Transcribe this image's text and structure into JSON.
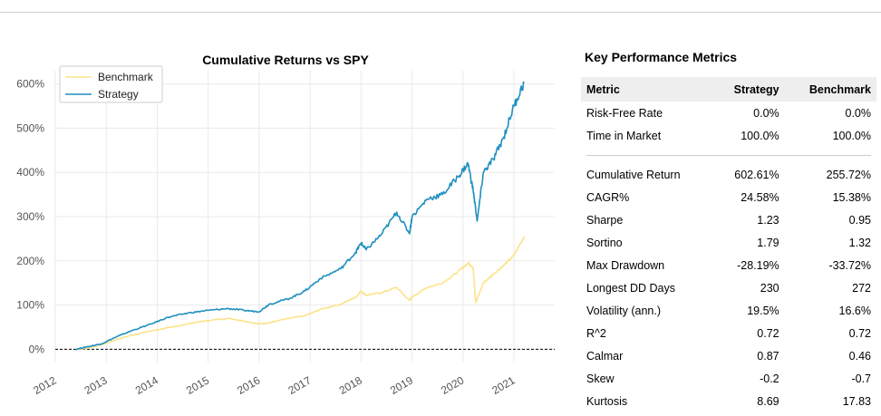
{
  "chart_data": {
    "type": "line",
    "title": "Cumulative Returns vs SPY",
    "xlabel": "",
    "ylabel": "",
    "x_ticks": [
      "2012",
      "2013",
      "2014",
      "2015",
      "2016",
      "2017",
      "2018",
      "2019",
      "2020",
      "2021"
    ],
    "y_ticks": [
      "0%",
      "100%",
      "200%",
      "300%",
      "400%",
      "500%",
      "600%"
    ],
    "xlim": [
      2012.0,
      2021.8
    ],
    "ylim": [
      -30,
      630
    ],
    "grid": true,
    "legend_position": "top-left",
    "series": [
      {
        "name": "Benchmark",
        "color": "#fce38a",
        "x": [
          2012.4,
          2012.6,
          2012.9,
          2013.2,
          2013.5,
          2013.9,
          2014.3,
          2014.7,
          2015.0,
          2015.4,
          2015.7,
          2016.0,
          2016.2,
          2016.5,
          2016.9,
          2017.2,
          2017.6,
          2017.9,
          2018.0,
          2018.1,
          2018.4,
          2018.7,
          2018.95,
          2019.0,
          2019.3,
          2019.6,
          2019.9,
          2020.1,
          2020.2,
          2020.25,
          2020.4,
          2020.6,
          2020.8,
          2021.0,
          2021.2
        ],
        "values": [
          0,
          2,
          10,
          22,
          32,
          42,
          50,
          60,
          65,
          70,
          64,
          57,
          60,
          68,
          76,
          90,
          102,
          118,
          132,
          122,
          128,
          140,
          110,
          118,
          140,
          150,
          175,
          195,
          185,
          105,
          150,
          170,
          190,
          212,
          255
        ]
      },
      {
        "name": "Strategy",
        "color": "#1f8fbf",
        "x": [
          2012.4,
          2012.6,
          2012.9,
          2013.2,
          2013.5,
          2013.9,
          2014.2,
          2014.6,
          2015.0,
          2015.4,
          2015.7,
          2016.0,
          2016.2,
          2016.6,
          2016.9,
          2017.2,
          2017.6,
          2017.9,
          2018.0,
          2018.1,
          2018.4,
          2018.7,
          2018.95,
          2019.0,
          2019.3,
          2019.6,
          2019.9,
          2020.1,
          2020.2,
          2020.28,
          2020.4,
          2020.6,
          2020.8,
          2021.0,
          2021.2
        ],
        "values": [
          0,
          5,
          12,
          28,
          42,
          58,
          72,
          82,
          88,
          92,
          88,
          85,
          102,
          115,
          132,
          160,
          182,
          220,
          240,
          225,
          260,
          310,
          262,
          300,
          340,
          350,
          390,
          420,
          360,
          290,
          400,
          430,
          480,
          550,
          603
        ]
      }
    ]
  },
  "metrics": {
    "title": "Key Performance Metrics",
    "headers": [
      "Metric",
      "Strategy",
      "Benchmark"
    ],
    "rows_top": [
      [
        "Risk-Free Rate",
        "0.0%",
        "0.0%"
      ],
      [
        "Time in Market",
        "100.0%",
        "100.0%"
      ]
    ],
    "rows_main": [
      [
        "Cumulative Return",
        "602.61%",
        "255.72%"
      ],
      [
        "CAGR%",
        "24.58%",
        "15.38%"
      ],
      [
        "Sharpe",
        "1.23",
        "0.95"
      ],
      [
        "Sortino",
        "1.79",
        "1.32"
      ],
      [
        "Max Drawdown",
        "-28.19%",
        "-33.72%"
      ],
      [
        "Longest DD Days",
        "230",
        "272"
      ],
      [
        "Volatility (ann.)",
        "19.5%",
        "16.6%"
      ],
      [
        "R^2",
        "0.72",
        "0.72"
      ],
      [
        "Calmar",
        "0.87",
        "0.46"
      ],
      [
        "Skew",
        "-0.2",
        "-0.7"
      ],
      [
        "Kurtosis",
        "8.69",
        "17.83"
      ]
    ]
  }
}
